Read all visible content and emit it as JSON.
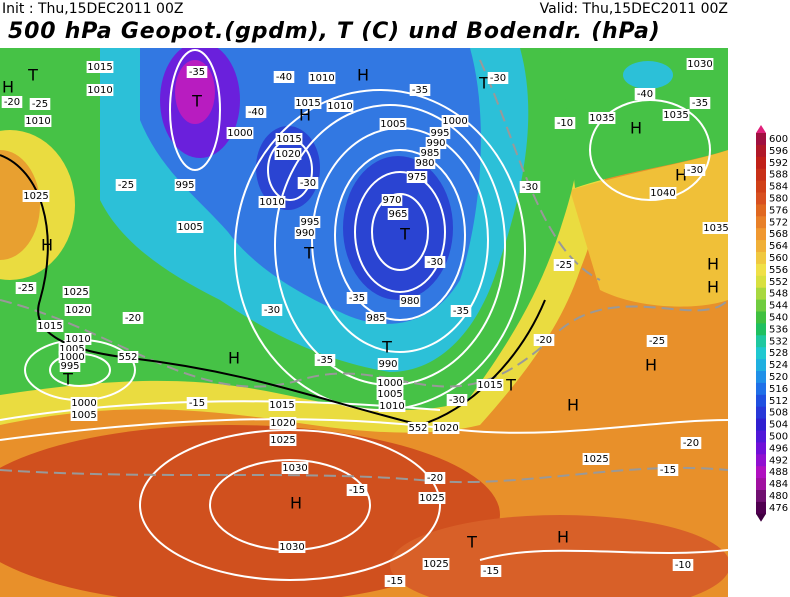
{
  "header": {
    "init": "Init : Thu,15DEC2011 00Z",
    "valid": "Valid: Thu,15DEC2011 00Z",
    "title": "500 hPa Geopot.(gpdm), T (C) und Bodendr. (hPa)"
  },
  "map": {
    "pressure_centers": [
      "H",
      "T",
      "T",
      "H",
      "H",
      "H",
      "H",
      "H",
      "T",
      "T",
      "H",
      "T",
      "T",
      "T",
      "H",
      "H",
      "H",
      "H",
      "H",
      "T",
      "H",
      "T"
    ],
    "isobar_labels": [
      1015,
      1010,
      1010,
      1025,
      995,
      1000,
      1015,
      1020,
      1010,
      1005,
      995,
      990,
      1010,
      1015,
      1010,
      1005,
      1000,
      995,
      990,
      985,
      980,
      975,
      970,
      965,
      980,
      985,
      990,
      1000,
      1005,
      1010,
      1015,
      1020,
      1025,
      1025,
      1030,
      1030,
      1025,
      1035,
      1040,
      1030,
      1035,
      1035,
      1025,
      1020,
      1015,
      1010,
      1005,
      1000,
      995,
      1000,
      1005,
      1015,
      1020,
      1025
    ],
    "temperature_labels": [
      -35,
      -40,
      -40,
      -30,
      -35,
      -30,
      -30,
      -35,
      -30,
      -25,
      -25,
      -20,
      -25,
      -20,
      -35,
      -15,
      -20,
      -25,
      -30,
      -35,
      -40,
      -35,
      -30,
      -10,
      -20,
      -15,
      -15,
      -20,
      -15,
      -15,
      -10,
      -25,
      -30
    ],
    "contour_labels": [
      552,
      552
    ]
  },
  "colorbar": {
    "labels": [
      600,
      596,
      592,
      588,
      584,
      580,
      576,
      572,
      568,
      564,
      560,
      556,
      552,
      548,
      544,
      540,
      536,
      532,
      528,
      524,
      520,
      516,
      512,
      508,
      504,
      500,
      496,
      492,
      488,
      484,
      480,
      476
    ]
  }
}
